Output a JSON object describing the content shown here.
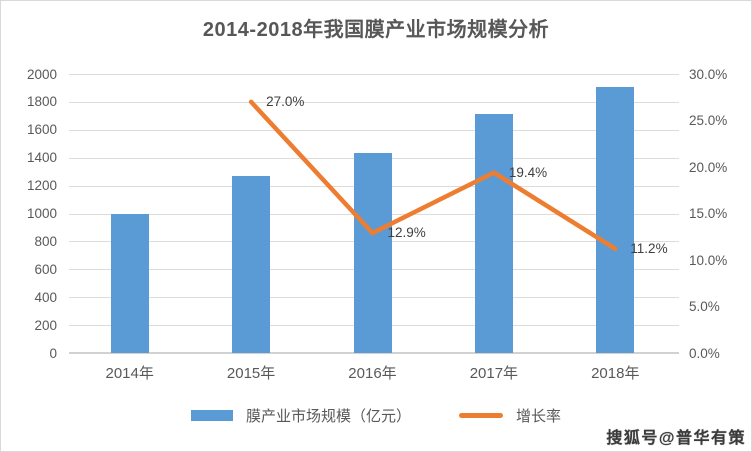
{
  "title": "2014-2018年我国膜产业市场规模分析",
  "watermark": "搜狐号@普华有策",
  "colors": {
    "bar": "#5B9BD5",
    "line": "#ED7D31",
    "grid": "#DCDCDC",
    "axis_text": "#595959",
    "title_text": "#575757",
    "label_text": "#3F3F3F"
  },
  "legend": {
    "bar_label": "膜产业市场规模（亿元）",
    "line_label": "增长率"
  },
  "chart_data": {
    "type": "bar+line",
    "title": "2014-2018年我国膜产业市场规模分析",
    "categories": [
      "2014年",
      "2015年",
      "2016年",
      "2017年",
      "2018年"
    ],
    "series": [
      {
        "name": "膜产业市场规模（亿元）",
        "type": "bar",
        "axis": "left",
        "values": [
          1000,
          1270,
          1434,
          1712,
          1904
        ],
        "color": "#5B9BD5"
      },
      {
        "name": "增长率",
        "type": "line",
        "axis": "right",
        "values": [
          null,
          27.0,
          12.9,
          19.4,
          11.2
        ],
        "point_labels": [
          "",
          "27.0%",
          "12.9%",
          "19.4%",
          "11.2%"
        ],
        "color": "#ED7D31"
      }
    ],
    "left_axis": {
      "min": 0,
      "max": 2000,
      "tick_labels": [
        "0",
        "200",
        "400",
        "600",
        "800",
        "1000",
        "1200",
        "1400",
        "1600",
        "1800",
        "2000"
      ]
    },
    "right_axis": {
      "min": 0,
      "max": 30,
      "tick_labels": [
        "0.0%",
        "5.0%",
        "10.0%",
        "15.0%",
        "20.0%",
        "25.0%",
        "30.0%"
      ]
    },
    "grid": true,
    "legend_position": "bottom"
  }
}
